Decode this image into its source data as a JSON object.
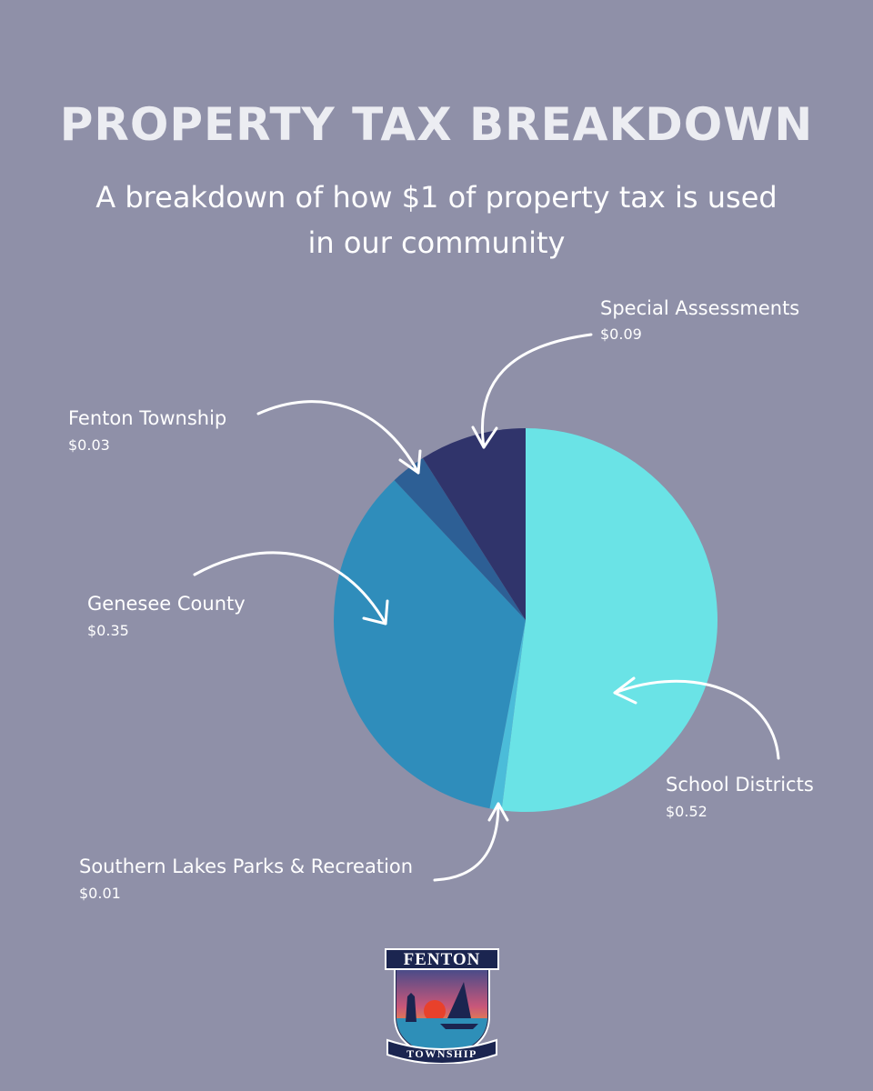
{
  "title": "PROPERTY TAX BREAKDOWN",
  "subtitle": "A breakdown of how $1 of property tax is used in our community",
  "chart_data": {
    "type": "pie",
    "start_angle_deg": 0,
    "direction": "clockwise",
    "slices": [
      {
        "label": "School Districts",
        "value": 0.52,
        "value_label": "$0.52",
        "color": "#6ae3e6"
      },
      {
        "label": "Southern Lakes Parks & Recreation",
        "value": 0.01,
        "value_label": "$0.01",
        "color": "#4bbcd9"
      },
      {
        "label": "Genesee County",
        "value": 0.35,
        "value_label": "$0.35",
        "color": "#2f8dbb"
      },
      {
        "label": "Fenton Township",
        "value": 0.03,
        "value_label": "$0.03",
        "color": "#2d5f95"
      },
      {
        "label": "Special Assessments",
        "value": 0.09,
        "value_label": "$0.09",
        "color": "#30346b"
      }
    ]
  },
  "logo": {
    "top_text": "FENTON",
    "bottom_text": "TOWNSHIP"
  }
}
